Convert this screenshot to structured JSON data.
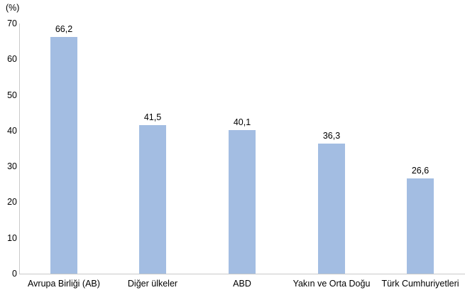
{
  "chart_data": {
    "type": "bar",
    "title": "",
    "unit_label": "(%)",
    "categories": [
      "Avrupa Birliği (AB)",
      "Diğer ülkeler",
      "ABD",
      "Yakın ve Orta Doğu",
      "Türk Cumhuriyetleri"
    ],
    "values": [
      66.2,
      41.5,
      40.1,
      36.3,
      26.6
    ],
    "value_labels": [
      "66,2",
      "41,5",
      "40,1",
      "36,3",
      "26,6"
    ],
    "xlabel": "",
    "ylabel": "(%)",
    "ylim": [
      0,
      70
    ],
    "y_ticks": [
      0,
      10,
      20,
      30,
      40,
      50,
      60,
      70
    ],
    "grid": false,
    "legend": false,
    "bar_color": "#a3bde2",
    "axis_color": "#c9c9c9",
    "text_color": "#000000"
  }
}
